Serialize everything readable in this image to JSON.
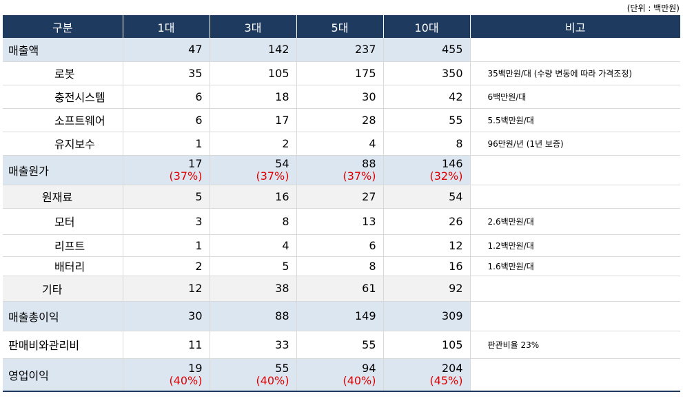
{
  "unit_note": "(단위 : 백만원)",
  "header": {
    "category": "구분",
    "cols": [
      "1대",
      "3대",
      "5대",
      "10대"
    ],
    "note": "비고"
  },
  "rows": [
    {
      "label": "매출액",
      "values": [
        "47",
        "142",
        "237",
        "455"
      ],
      "note": ""
    },
    {
      "label": "로봇",
      "values": [
        "35",
        "105",
        "175",
        "350"
      ],
      "note": "35백만원/대 (수량 변동에 따라 가격조정)"
    },
    {
      "label": "충전시스템",
      "values": [
        "6",
        "18",
        "30",
        "42"
      ],
      "note": "6백만원/대"
    },
    {
      "label": "소프트웨어",
      "values": [
        "6",
        "17",
        "28",
        "55"
      ],
      "note": "5.5백만원/대"
    },
    {
      "label": "유지보수",
      "values": [
        "1",
        "2",
        "4",
        "8"
      ],
      "note": "96만원/년 (1년 보증)"
    },
    {
      "label": "매출원가",
      "values": [
        "17",
        "54",
        "88",
        "146"
      ],
      "pcts": [
        "(37%)",
        "(37%)",
        "(37%)",
        "(32%)"
      ],
      "note": ""
    },
    {
      "label": "원재료",
      "values": [
        "5",
        "16",
        "27",
        "54"
      ],
      "note": ""
    },
    {
      "label": "모터",
      "values": [
        "3",
        "8",
        "13",
        "26"
      ],
      "note": "2.6백만원/대"
    },
    {
      "label": "리프트",
      "values": [
        "1",
        "4",
        "6",
        "12"
      ],
      "note": "1.2백만원/대"
    },
    {
      "label": "배터리",
      "values": [
        "2",
        "5",
        "8",
        "16"
      ],
      "note": "1.6백만원/대"
    },
    {
      "label": "기타",
      "values": [
        "12",
        "38",
        "61",
        "92"
      ],
      "note": ""
    },
    {
      "label": "매출총이익",
      "values": [
        "30",
        "88",
        "149",
        "309"
      ],
      "note": ""
    },
    {
      "label": "판매비와관리비",
      "values": [
        "11",
        "33",
        "55",
        "105"
      ],
      "note": "판관비율 23%"
    },
    {
      "label": "영업이익",
      "values": [
        "19",
        "55",
        "94",
        "204"
      ],
      "pcts": [
        "(40%)",
        "(40%)",
        "(40%)",
        "(45%)"
      ],
      "note": ""
    }
  ],
  "colors": {
    "header_bg": "#1f3a5f",
    "highlight_bg": "#dce6f1",
    "sub_bg": "#f2f2f2",
    "pct_color": "#e00000"
  }
}
